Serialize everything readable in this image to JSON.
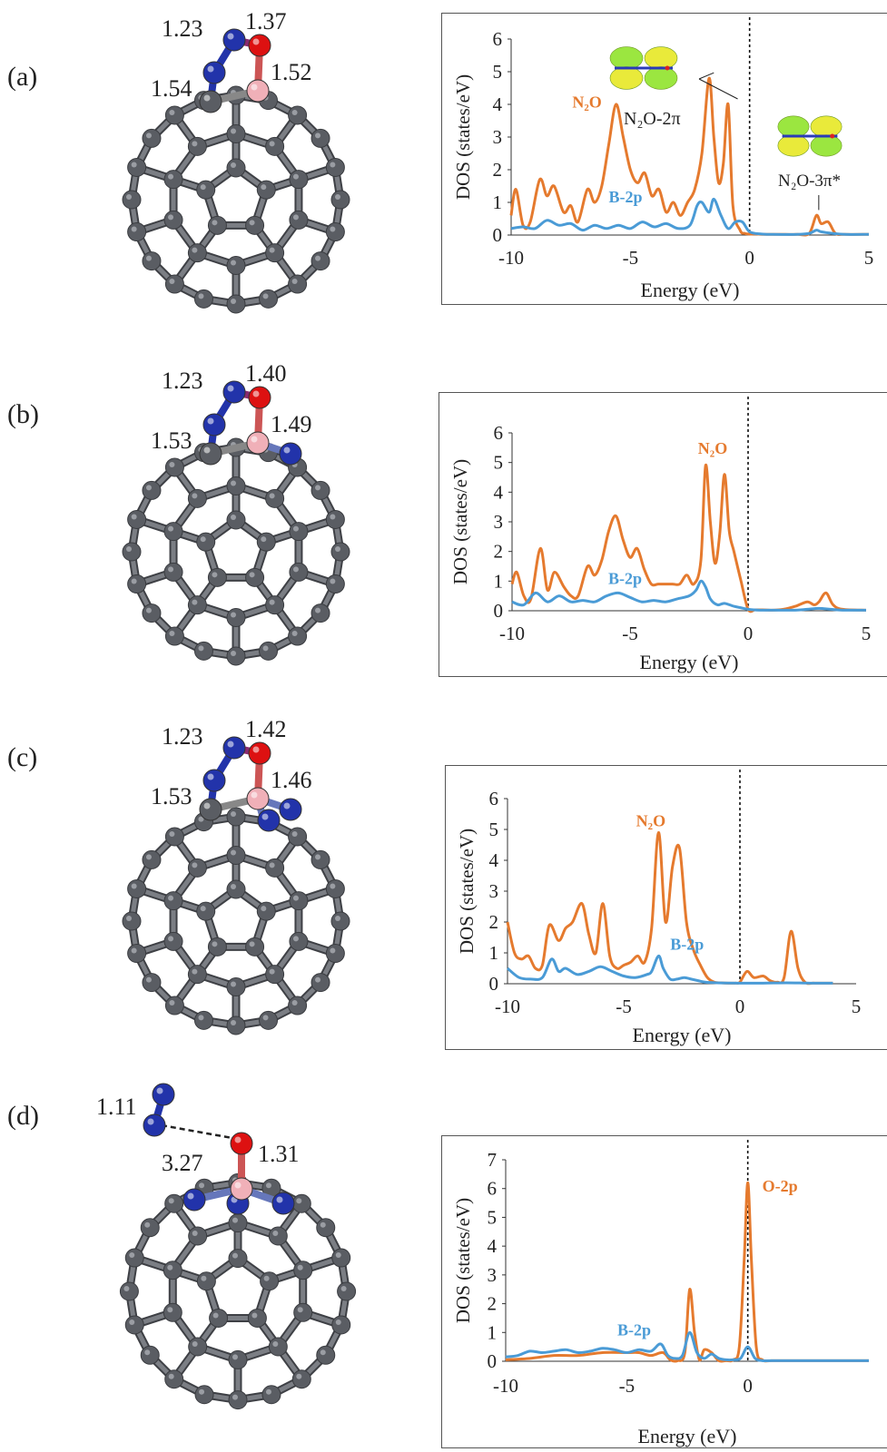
{
  "panels": [
    {
      "label": "(a)",
      "bonds": [
        "1.23",
        "1.37",
        "1.54",
        "1.52"
      ]
    },
    {
      "label": "(b)",
      "bonds": [
        "1.23",
        "1.40",
        "1.53",
        "1.49"
      ]
    },
    {
      "label": "(c)",
      "bonds": [
        "1.23",
        "1.42",
        "1.53",
        "1.46"
      ]
    },
    {
      "label": "(d)",
      "bonds": [
        "1.11",
        "3.27",
        "1.31"
      ]
    }
  ],
  "colors": {
    "n2o": "#E57A2E",
    "b2p": "#4A9BD6",
    "o2p": "#E57A2E",
    "carbon": "#5a5d63",
    "nitrogen": "#2233aa",
    "oxygen": "#dd1111",
    "boron": "#f0b0b8"
  },
  "chart_data": [
    {
      "type": "line",
      "xlabel": "Energy (eV)",
      "ylabel": "DOS (states/eV)",
      "xlim": [
        -10,
        5
      ],
      "ylim": [
        0,
        6
      ],
      "xticks": [
        "-10",
        "-5",
        "0",
        "5"
      ],
      "yticks": [
        "0",
        "1",
        "2",
        "3",
        "4",
        "5",
        "6"
      ],
      "fermi_level": 0,
      "annotations": [
        "N₂O-2π",
        "N₂O-3π*"
      ],
      "series": [
        {
          "name": "N₂O",
          "x": [
            -10,
            -9.8,
            -9.5,
            -9.2,
            -8.8,
            -8.5,
            -8.2,
            -7.8,
            -7.5,
            -7.2,
            -6.8,
            -6.5,
            -6.2,
            -5.9,
            -5.6,
            -5.3,
            -5,
            -4.7,
            -4.4,
            -4.1,
            -3.8,
            -3.5,
            -3.2,
            -2.9,
            -2.6,
            -2.3,
            -2,
            -1.7,
            -1.5,
            -1.3,
            -1.1,
            -0.9,
            -0.7,
            -0.4,
            -0.2,
            0,
            0.3,
            0.6,
            1,
            1.5,
            2,
            2.5,
            2.8,
            3,
            3.3,
            3.6,
            4,
            5
          ],
          "y": [
            0.6,
            1.4,
            0.3,
            0.4,
            1.7,
            1.2,
            1.5,
            0.7,
            0.9,
            0.4,
            1.4,
            1.0,
            1.5,
            2.8,
            4.0,
            3.0,
            2.0,
            1.6,
            1.9,
            1.2,
            1.4,
            0.7,
            1.0,
            0.6,
            1.0,
            1.4,
            2.5,
            4.8,
            3.0,
            1.6,
            2.2,
            4.0,
            0.9,
            0.15,
            0.05,
            0.03,
            0.03,
            0.02,
            0.02,
            0.02,
            0.02,
            0.05,
            0.6,
            0.35,
            0.4,
            0.05,
            0.02,
            0.02
          ]
        },
        {
          "name": "B-2p",
          "x": [
            -10,
            -9.5,
            -9,
            -8.5,
            -8,
            -7.5,
            -7,
            -6.5,
            -6,
            -5.5,
            -5,
            -4.5,
            -4,
            -3.5,
            -3,
            -2.5,
            -2.2,
            -2,
            -1.7,
            -1.5,
            -1.2,
            -0.9,
            -0.6,
            -0.3,
            0,
            0.5,
            1,
            2,
            2.5,
            2.8,
            3,
            3.5,
            4,
            5
          ],
          "y": [
            0.2,
            0.25,
            0.2,
            0.45,
            0.3,
            0.35,
            0.15,
            0.3,
            0.2,
            0.3,
            0.2,
            0.4,
            0.25,
            0.35,
            0.2,
            0.3,
            0.9,
            1.0,
            0.7,
            1.1,
            0.6,
            0.2,
            0.4,
            0.4,
            0.1,
            0.03,
            0.02,
            0.02,
            0.05,
            0.15,
            0.1,
            0.05,
            0.02,
            0.02
          ]
        }
      ]
    },
    {
      "type": "line",
      "xlabel": "Energy (eV)",
      "ylabel": "DOS (states/eV)",
      "xlim": [
        -10,
        5
      ],
      "ylim": [
        0,
        6
      ],
      "xticks": [
        "-10",
        "-5",
        "0",
        "5"
      ],
      "yticks": [
        "0",
        "1",
        "2",
        "3",
        "4",
        "5",
        "6"
      ],
      "fermi_level": 0,
      "annotations": [],
      "series": [
        {
          "name": "N₂O",
          "x": [
            -10,
            -9.8,
            -9.5,
            -9.2,
            -8.8,
            -8.5,
            -8.2,
            -7.8,
            -7.5,
            -7.2,
            -6.8,
            -6.5,
            -6.2,
            -5.9,
            -5.6,
            -5.3,
            -5,
            -4.7,
            -4.4,
            -4.1,
            -3.8,
            -3.5,
            -3.2,
            -2.9,
            -2.6,
            -2.3,
            -2,
            -1.8,
            -1.6,
            -1.4,
            -1.2,
            -1.0,
            -0.8,
            -0.6,
            -0.3,
            0,
            0.3,
            0.6,
            1,
            1.5,
            2,
            2.5,
            2.8,
            3,
            3.3,
            3.6,
            4,
            5
          ],
          "y": [
            0.9,
            1.3,
            0.5,
            0.4,
            2.1,
            0.7,
            1.3,
            0.8,
            0.5,
            0.5,
            1.5,
            1.2,
            1.7,
            2.7,
            3.2,
            2.4,
            1.8,
            2.1,
            1.4,
            0.9,
            0.9,
            0.9,
            0.9,
            0.9,
            1.2,
            0.9,
            1.7,
            4.9,
            3.0,
            1.6,
            2.6,
            4.6,
            2.7,
            2.0,
            1.0,
            0.05,
            0.03,
            0.03,
            0.02,
            0.05,
            0.15,
            0.3,
            0.2,
            0.3,
            0.6,
            0.2,
            0.05,
            0.02
          ]
        },
        {
          "name": "B-2p",
          "x": [
            -10,
            -9.5,
            -9,
            -8.5,
            -8,
            -7.5,
            -7,
            -6.5,
            -6,
            -5.5,
            -5,
            -4.5,
            -4,
            -3.5,
            -3,
            -2.5,
            -2.2,
            -2,
            -1.8,
            -1.6,
            -1.3,
            -1,
            -0.6,
            -0.3,
            0,
            0.5,
            1,
            2,
            2.5,
            3,
            3.5,
            4,
            5
          ],
          "y": [
            0.3,
            0.2,
            0.6,
            0.3,
            0.5,
            0.3,
            0.35,
            0.3,
            0.5,
            0.6,
            0.45,
            0.3,
            0.35,
            0.3,
            0.4,
            0.5,
            0.7,
            1.0,
            0.8,
            0.4,
            0.2,
            0.25,
            0.15,
            0.1,
            0.05,
            0.02,
            0.02,
            0.02,
            0.05,
            0.08,
            0.05,
            0.02,
            0.02
          ]
        }
      ]
    },
    {
      "type": "line",
      "xlabel": "Energy (eV)",
      "ylabel": "DOS (states/eV)",
      "xlim": [
        -10,
        5
      ],
      "ylim": [
        0,
        6
      ],
      "xticks": [
        "-10",
        "-5",
        "0",
        "5"
      ],
      "yticks": [
        "0",
        "1",
        "2",
        "3",
        "4",
        "5",
        "6"
      ],
      "fermi_level": 0,
      "annotations": [],
      "series": [
        {
          "name": "N₂O",
          "x": [
            -10,
            -9.7,
            -9.4,
            -9.1,
            -8.8,
            -8.5,
            -8.2,
            -7.8,
            -7.5,
            -7.2,
            -6.8,
            -6.5,
            -6.2,
            -5.9,
            -5.6,
            -5.3,
            -5,
            -4.7,
            -4.4,
            -4.1,
            -3.8,
            -3.5,
            -3.2,
            -2.9,
            -2.6,
            -2.3,
            -2,
            -1.7,
            -1.4,
            -1.1,
            -0.8,
            -0.5,
            -0.2,
            0,
            0.3,
            0.6,
            1,
            1.3,
            1.6,
            1.9,
            2.2,
            2.5,
            2.8,
            3.2,
            4
          ],
          "y": [
            2.0,
            1.0,
            0.8,
            0.9,
            0.5,
            0.6,
            1.9,
            1.4,
            1.8,
            2.0,
            2.6,
            1.6,
            1.0,
            2.6,
            0.9,
            0.5,
            0.6,
            0.7,
            0.9,
            0.7,
            1.8,
            4.9,
            2.0,
            3.8,
            4.4,
            2.0,
            1.1,
            0.6,
            0.2,
            0.05,
            0.03,
            0.02,
            0.02,
            0.05,
            0.4,
            0.2,
            0.25,
            0.1,
            0.05,
            0.2,
            1.7,
            0.5,
            0.05,
            0.02,
            0.02
          ]
        },
        {
          "name": "B-2p",
          "x": [
            -10,
            -9.5,
            -9,
            -8.5,
            -8.1,
            -7.8,
            -7.5,
            -7,
            -6.5,
            -6,
            -5.5,
            -5,
            -4.5,
            -4,
            -3.8,
            -3.5,
            -3.3,
            -3,
            -2.7,
            -2.4,
            -2.1,
            -1.8,
            -1.5,
            -1,
            0,
            1,
            2,
            3,
            4
          ],
          "y": [
            0.5,
            0.2,
            0.15,
            0.2,
            0.8,
            0.4,
            0.5,
            0.3,
            0.4,
            0.55,
            0.4,
            0.25,
            0.2,
            0.3,
            0.4,
            0.9,
            0.5,
            0.15,
            0.15,
            0.2,
            0.15,
            0.1,
            0.05,
            0.03,
            0.02,
            0.02,
            0.03,
            0.02,
            0.02
          ]
        }
      ]
    },
    {
      "type": "line",
      "xlabel": "Energy (eV)",
      "ylabel": "DOS (states/eV)",
      "xlim": [
        -10,
        5
      ],
      "ylim": [
        0,
        7
      ],
      "xticks": [
        "-10",
        "-5",
        "0"
      ],
      "yticks": [
        "0",
        "1",
        "2",
        "3",
        "4",
        "5",
        "6",
        "7"
      ],
      "fermi_level": 0,
      "annotations": [],
      "series": [
        {
          "name": "O-2p",
          "x": [
            -10,
            -9,
            -8,
            -7,
            -6,
            -5,
            -4.5,
            -4,
            -3.5,
            -3.2,
            -2.9,
            -2.6,
            -2.4,
            -2.2,
            -2,
            -1.8,
            -1.5,
            -1.2,
            -0.9,
            -0.6,
            -0.35,
            -0.15,
            0,
            0.15,
            0.35,
            0.6,
            1,
            2,
            3,
            4,
            5
          ],
          "y": [
            0.05,
            0.1,
            0.2,
            0.2,
            0.3,
            0.3,
            0.3,
            0.2,
            0.3,
            0.05,
            0.02,
            0.3,
            2.5,
            1.0,
            0.05,
            0.4,
            0.3,
            0.02,
            0.02,
            0.05,
            0.5,
            3.5,
            6.2,
            3.5,
            0.5,
            0.05,
            0.02,
            0.02,
            0.02,
            0.02,
            0.02
          ]
        },
        {
          "name": "B-2p",
          "x": [
            -10,
            -9.5,
            -9,
            -8.5,
            -8,
            -7.5,
            -7,
            -6.5,
            -6,
            -5.5,
            -5,
            -4.5,
            -4,
            -3.6,
            -3.3,
            -3,
            -2.7,
            -2.4,
            -2.1,
            -1.8,
            -1.5,
            -1.2,
            -0.9,
            -0.6,
            -0.3,
            0,
            0.3,
            0.6,
            1,
            2,
            3,
            4,
            5
          ],
          "y": [
            0.15,
            0.2,
            0.35,
            0.3,
            0.35,
            0.4,
            0.3,
            0.35,
            0.45,
            0.4,
            0.3,
            0.4,
            0.35,
            0.6,
            0.2,
            0.1,
            0.2,
            1.0,
            0.3,
            0.1,
            0.25,
            0.1,
            0.05,
            0.05,
            0.1,
            0.5,
            0.1,
            0.02,
            0.02,
            0.02,
            0.02,
            0.02,
            0.02
          ]
        }
      ]
    }
  ]
}
